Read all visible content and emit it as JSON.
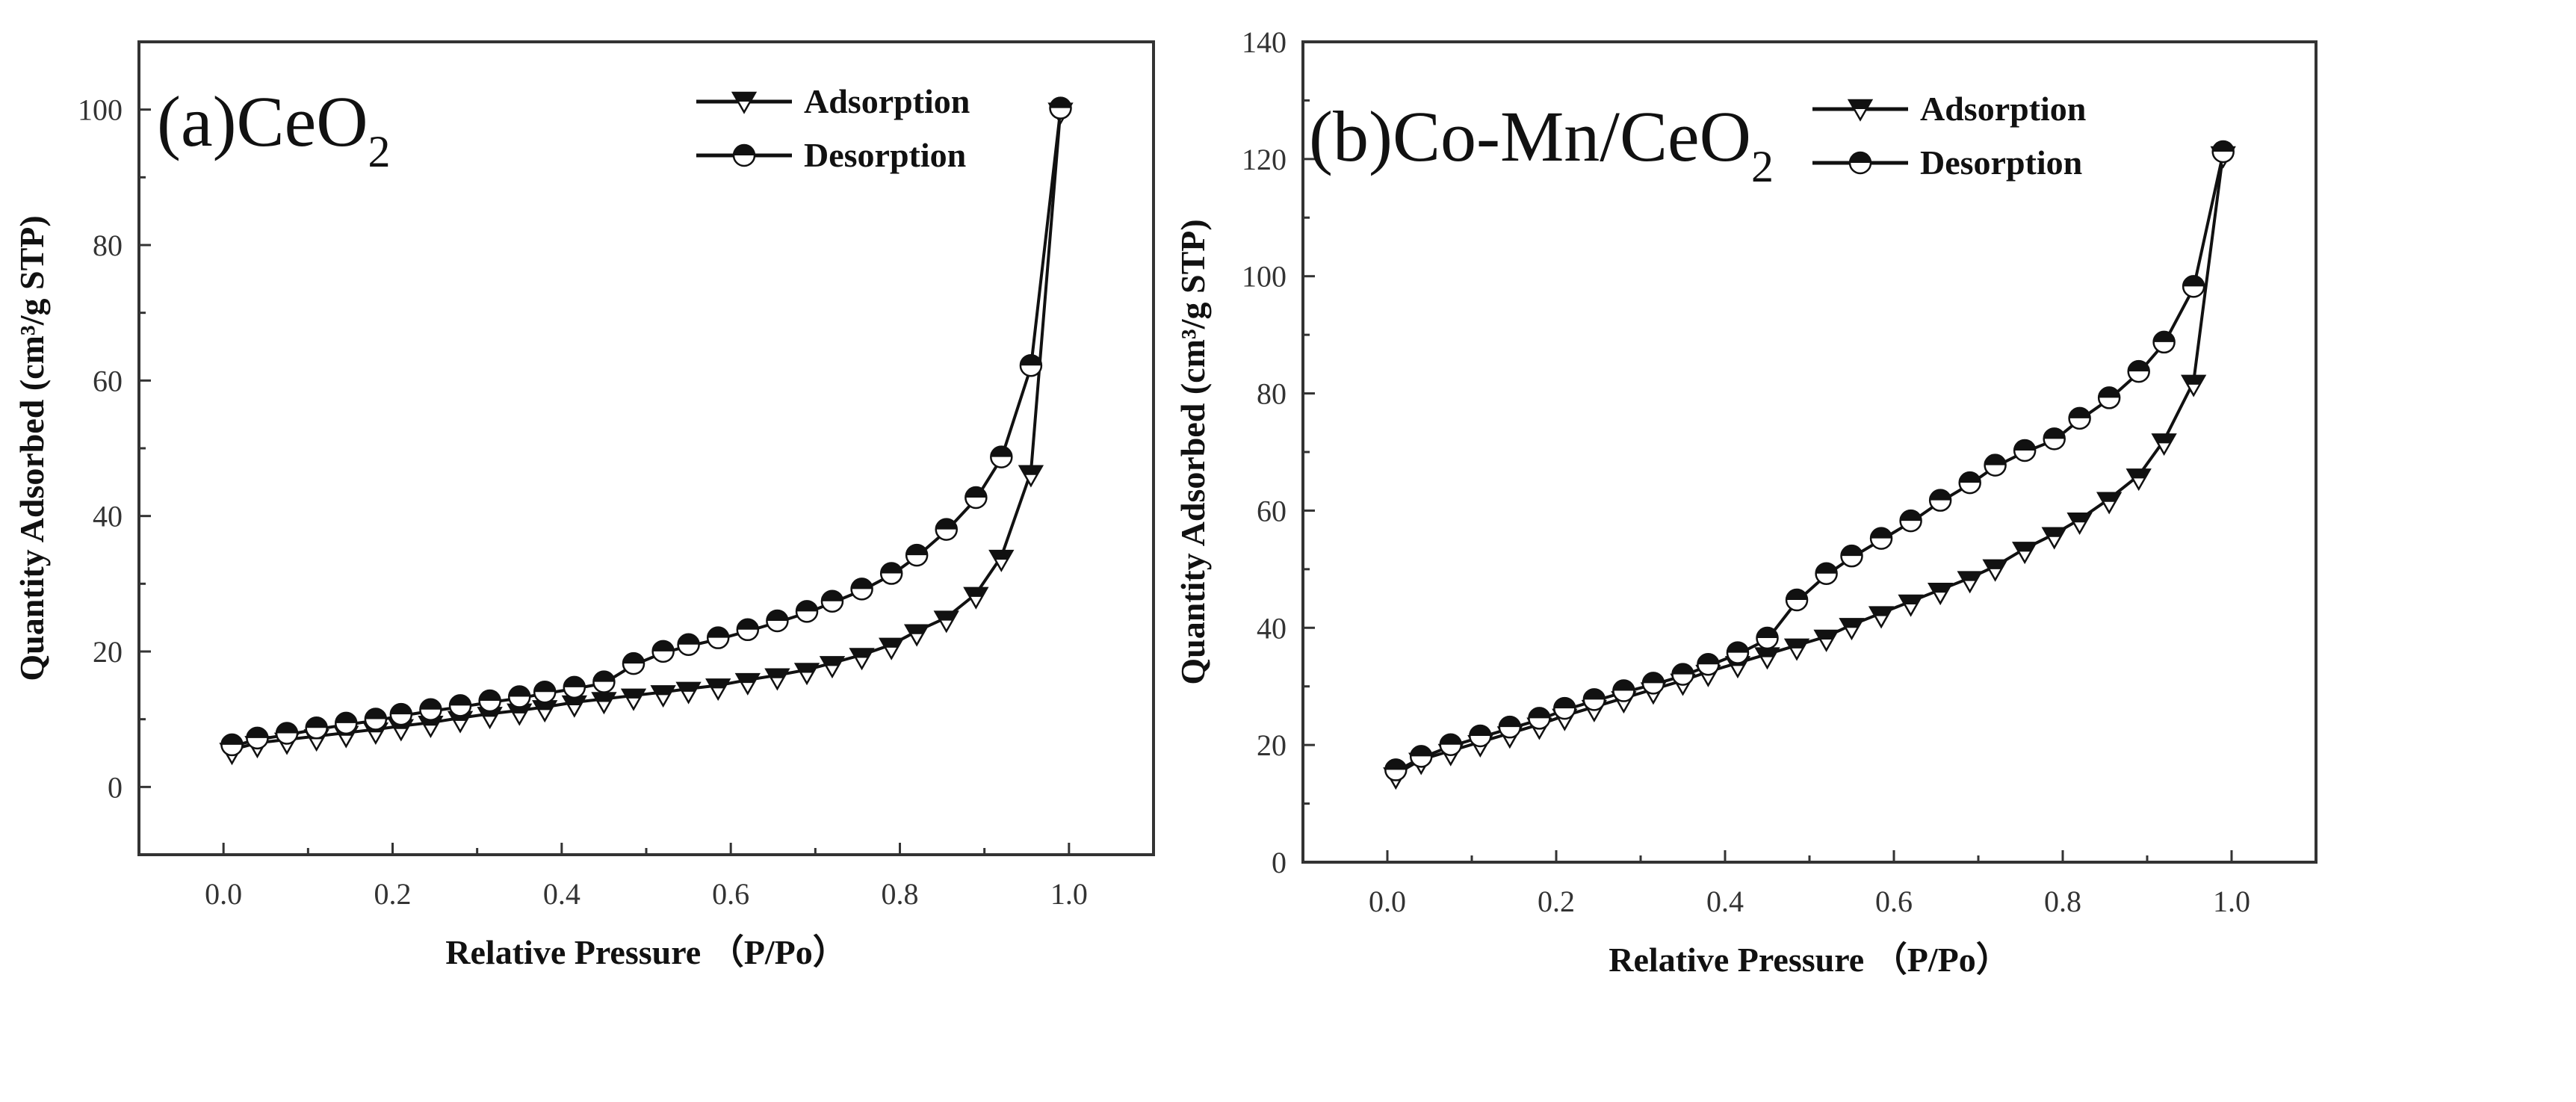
{
  "chart_data": [
    {
      "type": "line",
      "title": "(a)CeO",
      "title_subscript": "2",
      "xlabel": "Relative Pressure （P/Po）",
      "ylabel": "Quantity Adsorbed (cm³/g STP)",
      "xlim": [
        -0.1,
        1.1
      ],
      "ylim": [
        -10,
        110
      ],
      "xticks": [
        "0.0",
        "0.2",
        "0.4",
        "0.6",
        "0.8",
        "1.0"
      ],
      "yticks": [
        "0",
        "20",
        "40",
        "60",
        "80",
        "100"
      ],
      "grid": false,
      "legend_position": "top-right",
      "x": [
        0.01,
        0.04,
        0.075,
        0.11,
        0.145,
        0.18,
        0.21,
        0.245,
        0.28,
        0.315,
        0.35,
        0.38,
        0.415,
        0.45,
        0.485,
        0.52,
        0.55,
        0.585,
        0.62,
        0.655,
        0.69,
        0.72,
        0.755,
        0.79,
        0.82,
        0.855,
        0.89,
        0.92,
        0.955,
        0.99
      ],
      "series": [
        {
          "name": "Adsorption",
          "marker": "triangle-down",
          "values": [
            5.5,
            6.5,
            7,
            7.5,
            8,
            8.5,
            9,
            9.5,
            10.2,
            10.8,
            11.3,
            11.8,
            12.5,
            13,
            13.5,
            14,
            14.5,
            15,
            15.8,
            16.5,
            17.3,
            18.3,
            19.5,
            21,
            23,
            25,
            28.5,
            34,
            46.5,
            100
          ]
        },
        {
          "name": "Desorption",
          "marker": "circle",
          "values": [
            6,
            7,
            7.7,
            8.5,
            9.2,
            9.8,
            10.5,
            11.2,
            11.8,
            12.5,
            13.1,
            13.8,
            14.5,
            15.3,
            18,
            19.8,
            20.8,
            21.8,
            23,
            24.3,
            25.7,
            27.2,
            29,
            31.3,
            34,
            37.8,
            42.5,
            48.5,
            62,
            100
          ]
        }
      ]
    },
    {
      "type": "line",
      "title": "(b)Co-Mn/CeO",
      "title_subscript": "2",
      "xlabel": "Relative Pressure （P/Po）",
      "ylabel": "Quantity Adsorbed (cm³/g STP)",
      "xlim": [
        -0.1,
        1.1
      ],
      "ylim": [
        0,
        140
      ],
      "xticks": [
        "0.0",
        "0.2",
        "0.4",
        "0.6",
        "0.8",
        "1.0"
      ],
      "yticks": [
        "0",
        "20",
        "40",
        "60",
        "80",
        "100",
        "120",
        "140"
      ],
      "grid": false,
      "legend_position": "top-right",
      "x": [
        0.01,
        0.04,
        0.075,
        0.11,
        0.145,
        0.18,
        0.21,
        0.245,
        0.28,
        0.315,
        0.35,
        0.38,
        0.415,
        0.45,
        0.485,
        0.52,
        0.55,
        0.585,
        0.62,
        0.655,
        0.69,
        0.72,
        0.755,
        0.79,
        0.82,
        0.855,
        0.89,
        0.92,
        0.955,
        0.99
      ],
      "series": [
        {
          "name": "Adsorption",
          "marker": "triangle-down",
          "values": [
            15,
            17.5,
            19,
            20.5,
            22,
            23.5,
            25,
            26.5,
            28,
            29.5,
            31,
            32.5,
            34,
            35.5,
            37,
            38.5,
            40.5,
            42.5,
            44.5,
            46.5,
            48.5,
            50.5,
            53.5,
            56,
            58.5,
            62,
            66,
            72,
            82,
            121
          ]
        },
        {
          "name": "Desorption",
          "marker": "circle",
          "values": [
            15.5,
            17.8,
            19.8,
            21.3,
            22.8,
            24.3,
            26,
            27.5,
            29,
            30.3,
            31.8,
            33.5,
            35.5,
            38,
            44.5,
            49,
            52,
            55,
            58,
            61.5,
            64.5,
            67.5,
            70,
            72,
            75.5,
            79,
            83.5,
            88.5,
            98,
            121
          ]
        }
      ]
    }
  ],
  "colors": {
    "line": "#111111",
    "frame": "#333333",
    "marker_fill": "#ffffff"
  }
}
